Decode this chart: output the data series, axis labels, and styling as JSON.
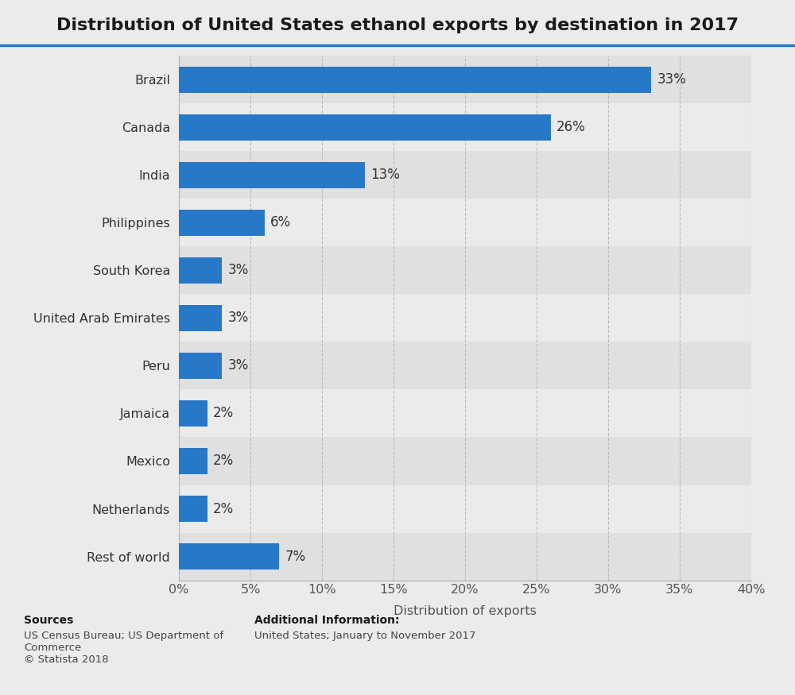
{
  "title": "Distribution of United States ethanol exports by destination in 2017",
  "categories": [
    "Brazil",
    "Canada",
    "India",
    "Philippines",
    "South Korea",
    "United Arab Emirates",
    "Peru",
    "Jamaica",
    "Mexico",
    "Netherlands",
    "Rest of world"
  ],
  "values": [
    33,
    26,
    13,
    6,
    3,
    3,
    3,
    2,
    2,
    2,
    7
  ],
  "labels": [
    "33%",
    "26%",
    "13%",
    "6%",
    "3%",
    "3%",
    "3%",
    "2%",
    "2%",
    "2%",
    "7%"
  ],
  "bar_color": "#2878c8",
  "background_color": "#ebebeb",
  "plot_bg_color": "#ebebeb",
  "row_alt_color": "#e0e0e0",
  "xlabel": "Distribution of exports",
  "xlim": [
    0,
    40
  ],
  "xticks": [
    0,
    5,
    10,
    15,
    20,
    25,
    30,
    35,
    40
  ],
  "xtick_labels": [
    "0%",
    "5%",
    "10%",
    "15%",
    "20%",
    "25%",
    "30%",
    "35%",
    "40%"
  ],
  "title_fontsize": 16,
  "tick_fontsize": 11.5,
  "label_fontsize": 11.5,
  "bar_label_fontsize": 12,
  "sources_bold": "Sources",
  "sources_normal": "US Census Bureau; US Department of\nCommerce\n© Statista 2018",
  "additional_bold": "Additional Information:",
  "additional_normal": "United States; January to November 2017",
  "top_line_color": "#2878c8"
}
